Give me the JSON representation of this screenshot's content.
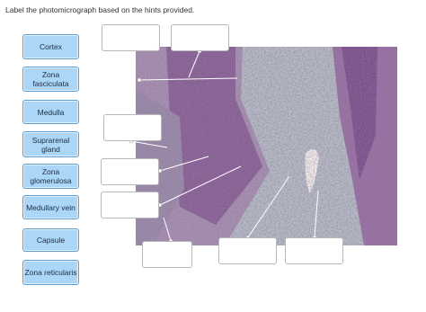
{
  "instruction": "Label the photomicrograph based on the hints provided.",
  "labels": [
    "Cortex",
    "Zona fasciculata",
    "Medulla",
    "Suprarenal gland",
    "Zona glomerulosa",
    "Medullary vein",
    "Capsule",
    "Zona reticularis"
  ]
}
